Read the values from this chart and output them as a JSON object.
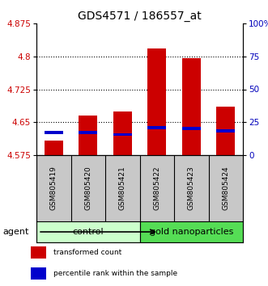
{
  "title": "GDS4571 / 186557_at",
  "samples": [
    "GSM805419",
    "GSM805420",
    "GSM805421",
    "GSM805422",
    "GSM805423",
    "GSM805424"
  ],
  "red_values": [
    4.608,
    4.665,
    4.675,
    4.818,
    4.795,
    4.685
  ],
  "blue_values": [
    4.627,
    4.627,
    4.622,
    4.638,
    4.635,
    4.63
  ],
  "ymin": 4.575,
  "ymax": 4.875,
  "yticks_red": [
    4.575,
    4.65,
    4.725,
    4.8,
    4.875
  ],
  "yticks_blue": [
    0,
    25,
    50,
    75,
    100
  ],
  "groups": [
    {
      "label": "control",
      "start": 0,
      "end": 3,
      "color": "#ccffcc"
    },
    {
      "label": "gold nanoparticles",
      "start": 3,
      "end": 6,
      "color": "#55dd55"
    }
  ],
  "agent_label": "agent",
  "legend_red": "transformed count",
  "legend_blue": "percentile rank within the sample",
  "bar_width": 0.55,
  "red_color": "#cc0000",
  "blue_color": "#0000cc",
  "bg_sample_row": "#c8c8c8",
  "title_fontsize": 10,
  "tick_fontsize": 7.5,
  "sample_fontsize": 6.5,
  "group_fontsize": 8,
  "legend_fontsize": 6.5
}
